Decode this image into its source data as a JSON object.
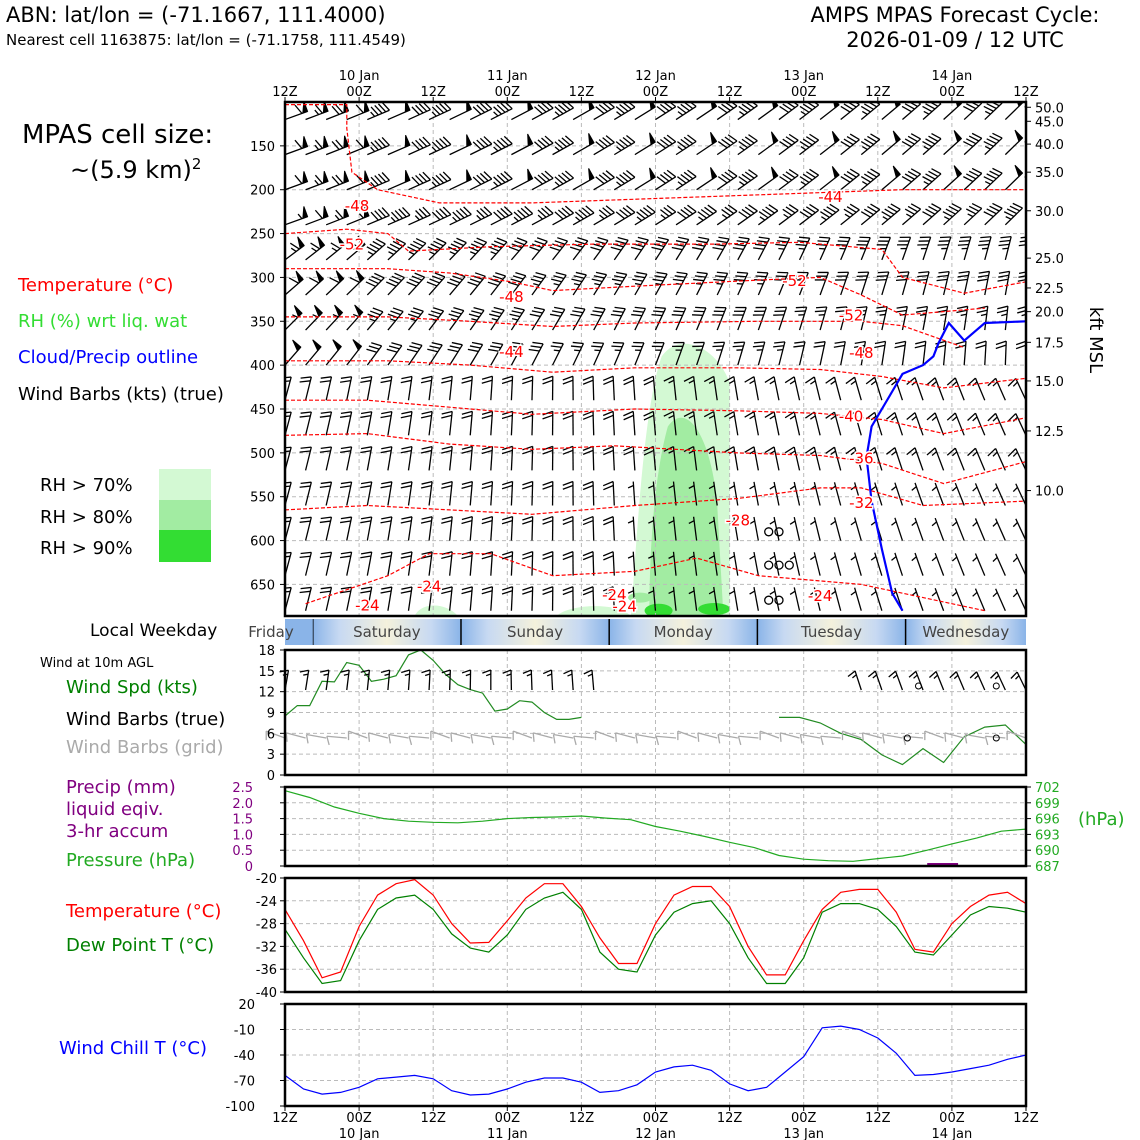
{
  "header": {
    "site_line": "ABN: lat/lon = (-71.1667, 111.4000)",
    "cell_line": "Nearest cell 1163875: lat/lon = (-71.1758, 111.4549)",
    "forecast_title": "AMPS MPAS Forecast Cycle:",
    "forecast_cycle": "2026-01-09 / 12 UTC"
  },
  "cell_size": {
    "label": "MPAS cell size:",
    "value": "~(5.9 km)",
    "exponent": "2"
  },
  "legend": {
    "temperature": "Temperature (°C)",
    "rh": "RH (%) wrt liq. wat",
    "cloud": "Cloud/Precip outline",
    "wind": "Wind Barbs (kts) (true)",
    "rh70": "RH > 70%",
    "rh80": "RH > 80%",
    "rh90": "RH > 90%"
  },
  "colors": {
    "temperature": "#ff0000",
    "rh_legend_text": "#33dd33",
    "cloud": "#0000ff",
    "rh70": "#d3f9d3",
    "rh80": "#a2eca2",
    "rh90": "#33dd33",
    "wind_speed": "#228b22",
    "pressure": "#22aa22",
    "precip": "#800080",
    "dewpoint": "#008000",
    "wind_chill": "#0000ff",
    "grid_barbs": "#aaaaaa"
  },
  "time_axis": {
    "ticks": [
      "12Z",
      "00Z",
      "12Z",
      "00Z",
      "12Z",
      "00Z",
      "12Z",
      "00Z",
      "12Z",
      "00Z",
      "12Z"
    ],
    "dates": [
      "10 Jan",
      "11 Jan",
      "12 Jan",
      "13 Jan",
      "14 Jan"
    ]
  },
  "weekday": {
    "label": "Local Weekday",
    "days": [
      "Friday",
      "Saturday",
      "Sunday",
      "Monday",
      "Tuesday",
      "Wednesday"
    ]
  },
  "panel_labels": {
    "wind10": "Wind at 10m AGL",
    "wind_spd": "Wind Spd (kts)",
    "wind_barbs_true": "Wind Barbs (true)",
    "wind_barbs_grid": "Wind Barbs (grid)",
    "precip1": "Precip (mm)",
    "precip2": "liquid eqiv.",
    "precip3": "3-hr accum",
    "pressure": "Pressure (hPa)",
    "pressure_unit": "(hPa)",
    "temperature": "Temperature (°C)",
    "dewpoint": "Dew Point T (°C)",
    "wind_chill": "Wind Chill T (°C)"
  },
  "chart_data": [
    {
      "type": "heatmap",
      "id": "profile",
      "left_axis_hpa": [
        150,
        200,
        250,
        300,
        350,
        400,
        450,
        500,
        550,
        600,
        650
      ],
      "right_axis_label": "kft MSL",
      "right_axis_kft": [
        "50.0",
        "45.0",
        "40.0",
        "35.0",
        "30.0",
        "25.0",
        "22.5",
        "20.0",
        "17.5",
        "15.0",
        "12.5",
        "10.0"
      ],
      "right_axis_hpa_pos": [
        106,
        122,
        148,
        180,
        224,
        278,
        312,
        339,
        374,
        418,
        475,
        543
      ],
      "temperature_contours": [
        {
          "label": "-48",
          "p": [
            [
              0,
              103
            ],
            [
              6,
              103
            ],
            [
              6,
              130
            ],
            [
              6.5,
              180
            ],
            [
              9,
              200
            ],
            [
              15,
              215
            ],
            [
              24,
              215
            ],
            [
              36,
              210
            ],
            [
              48,
              205
            ],
            [
              60,
              200
            ],
            [
              72,
              200
            ]
          ]
        },
        {
          "label": "-52",
          "p": [
            [
              0,
              250
            ],
            [
              6,
              245
            ],
            [
              10,
              250
            ],
            [
              12,
              270
            ],
            [
              20,
              265
            ],
            [
              30,
              262
            ],
            [
              42,
              262
            ],
            [
              50,
              260
            ],
            [
              58,
              268
            ],
            [
              60,
              300
            ],
            [
              66,
              318
            ],
            [
              72,
              305
            ]
          ]
        },
        {
          "label": "-48",
          "p": [
            [
              0,
              290
            ],
            [
              10,
              290
            ],
            [
              16,
              295
            ],
            [
              22,
              305
            ],
            [
              26,
              315
            ],
            [
              34,
              310
            ],
            [
              46,
              303
            ],
            [
              52,
              300
            ],
            [
              56,
              320
            ],
            [
              60,
              343
            ],
            [
              68,
              335
            ]
          ]
        },
        {
          "label": "-44",
          "p": [
            [
              0,
              345
            ],
            [
              10,
              345
            ],
            [
              18,
              350
            ],
            [
              26,
              356
            ],
            [
              34,
              352
            ],
            [
              46,
              350
            ],
            [
              56,
              350
            ],
            [
              60,
              355
            ],
            [
              66,
              380
            ]
          ]
        },
        {
          "label": "-40",
          "p": [
            [
              0,
              395
            ],
            [
              10,
              395
            ],
            [
              18,
              400
            ],
            [
              26,
              408
            ],
            [
              34,
              403
            ],
            [
              44,
              403
            ],
            [
              52,
              405
            ],
            [
              58,
              413
            ],
            [
              64,
              426
            ],
            [
              72,
              415
            ]
          ]
        },
        {
          "label": "-36",
          "p": [
            [
              0,
              440
            ],
            [
              8,
              440
            ],
            [
              16,
              448
            ],
            [
              24,
              456
            ],
            [
              34,
              450
            ],
            [
              44,
              452
            ],
            [
              52,
              455
            ],
            [
              58,
              462
            ],
            [
              64,
              478
            ],
            [
              72,
              460
            ]
          ]
        },
        {
          "label": "-32",
          "p": [
            [
              0,
              480
            ],
            [
              8,
              478
            ],
            [
              16,
              490
            ],
            [
              24,
              496
            ],
            [
              32,
              492
            ],
            [
              44,
              500
            ],
            [
              52,
              503
            ],
            [
              58,
              512
            ],
            [
              64,
              535
            ],
            [
              72,
              510
            ]
          ]
        },
        {
          "label": "-28",
          "p": [
            [
              0,
              565
            ],
            [
              8,
              560
            ],
            [
              16,
              565
            ],
            [
              24,
              570
            ],
            [
              34,
              560
            ],
            [
              44,
              552
            ],
            [
              52,
              540
            ],
            [
              56,
              540
            ],
            [
              62,
              560
            ],
            [
              72,
              555
            ]
          ]
        },
        {
          "label": "-24",
          "p": [
            [
              2,
              672
            ],
            [
              10,
              640
            ],
            [
              14,
              615
            ],
            [
              20,
              615
            ],
            [
              26,
              640
            ],
            [
              34,
              635
            ],
            [
              40,
              620
            ],
            [
              46,
              640
            ],
            [
              56,
              650
            ],
            [
              60,
              660
            ],
            [
              68,
              680
            ]
          ]
        }
      ],
      "temperature_labels": [
        {
          "text": "-48",
          "t": 7,
          "p": 224
        },
        {
          "text": "-52",
          "t": 6.5,
          "p": 268
        },
        {
          "text": "-48",
          "t": 22,
          "p": 328
        },
        {
          "text": "-44",
          "t": 22,
          "p": 391
        },
        {
          "text": "-52",
          "t": 49.5,
          "p": 310
        },
        {
          "text": "-44",
          "t": 53,
          "p": 214
        },
        {
          "text": "-52",
          "t": 55,
          "p": 349
        },
        {
          "text": "-48",
          "t": 56,
          "p": 392
        },
        {
          "text": "-40",
          "t": 55,
          "p": 464
        },
        {
          "text": "-36",
          "t": 56,
          "p": 512
        },
        {
          "text": "-32",
          "t": 56,
          "p": 563
        },
        {
          "text": "-28",
          "t": 44,
          "p": 583
        },
        {
          "text": "-24",
          "t": 14,
          "p": 658
        },
        {
          "text": "-24",
          "t": 32,
          "p": 668
        },
        {
          "text": "-24",
          "t": 33,
          "p": 681
        },
        {
          "text": "-24",
          "t": 52,
          "p": 669
        },
        {
          "text": "-24",
          "t": 8,
          "p": 680
        }
      ],
      "cloud_outline": [
        [
          60,
          680
        ],
        [
          59,
          660
        ],
        [
          58,
          610
        ],
        [
          57,
          555
        ],
        [
          56.5,
          505
        ],
        [
          57,
          470
        ],
        [
          58,
          450
        ],
        [
          59,
          430
        ],
        [
          60,
          410
        ],
        [
          62,
          400
        ],
        [
          63,
          390
        ],
        [
          63.5,
          375
        ],
        [
          64.5,
          352
        ],
        [
          66,
          372
        ],
        [
          67,
          362
        ],
        [
          68,
          352
        ],
        [
          72,
          350
        ]
      ],
      "calm_markers": [
        [
          47,
          590
        ],
        [
          48,
          590
        ],
        [
          47,
          628
        ],
        [
          48,
          628
        ],
        [
          49,
          628
        ],
        [
          47,
          668
        ],
        [
          48,
          668
        ]
      ]
    },
    {
      "type": "line",
      "id": "wind_speed",
      "ylim": [
        0,
        18
      ],
      "yticks": [
        0,
        3,
        6,
        9,
        12,
        15,
        18
      ],
      "x": [
        0,
        1,
        2,
        3,
        4,
        5,
        6,
        7,
        8,
        9,
        10,
        11,
        12,
        13,
        14,
        15,
        16,
        17,
        18,
        19,
        20,
        21,
        22,
        23,
        24
      ],
      "series": [
        {
          "values": [
            8.5,
            10,
            10,
            13.5,
            13.4,
            16.2,
            15.8,
            13.5,
            13.8,
            14.3,
            17.3,
            18,
            16.5,
            14.5,
            13,
            12.3,
            11.8,
            9.2,
            9.5,
            10.7,
            10.5,
            9,
            8,
            8,
            8.3
          ]
        }
      ],
      "x2": [
        24,
        25,
        26,
        27,
        28,
        29,
        30,
        31,
        32,
        33,
        34,
        35,
        36
      ],
      "series2": [
        {
          "values": [
            8.3,
            8.3,
            7.5,
            6,
            5.1,
            2.9,
            1.5,
            3.8,
            1.8,
            5.5,
            6.9,
            7.2,
            4.4
          ]
        }
      ]
    },
    {
      "type": "line",
      "id": "precip_pressure",
      "left_ylim": [
        0,
        2.5
      ],
      "left_yticks": [
        "0",
        "0.5",
        "1.0",
        "1.5",
        "2.0",
        "2.5"
      ],
      "right_ylim": [
        687,
        702
      ],
      "right_yticks": [
        "687",
        "690",
        "693",
        "696",
        "699",
        "702"
      ],
      "pressure": [
        701.3,
        700,
        698.2,
        697,
        696,
        695.5,
        695.3,
        695.2,
        695.5,
        696,
        696.2,
        696.3,
        696.5,
        696.1,
        695.8,
        694.5,
        693.6,
        692.6,
        691.5,
        690.5,
        689,
        688.3,
        688,
        687.9,
        688.4,
        688.9,
        690,
        691.2,
        692.3,
        693.6,
        694
      ]
    },
    {
      "type": "line",
      "id": "temp_dew",
      "ylim": [
        -40,
        -20
      ],
      "yticks": [
        -40,
        -36,
        -32,
        -28,
        -24,
        -20
      ],
      "temperature": [
        -25.5,
        -31,
        -37.5,
        -36.5,
        -28.5,
        -23,
        -21,
        -20.3,
        -23,
        -28,
        -31.4,
        -31.3,
        -27.5,
        -23.5,
        -21,
        -21,
        -25,
        -30.5,
        -35,
        -35,
        -28,
        -23,
        -21.5,
        -21.5,
        -25,
        -32,
        -37,
        -37,
        -31,
        -25.5,
        -22.5,
        -22,
        -22,
        -26,
        -32.5,
        -33,
        -28,
        -25,
        -23,
        -22.5,
        -24.5
      ],
      "dewpoint": [
        -29,
        -34,
        -38.5,
        -38,
        -31,
        -25.5,
        -23.5,
        -23,
        -25.5,
        -29.8,
        -32.3,
        -33,
        -30,
        -25.5,
        -23.5,
        -22.5,
        -25.5,
        -33,
        -36,
        -36.5,
        -30,
        -26,
        -24.5,
        -24,
        -28,
        -34,
        -38.5,
        -38.5,
        -34,
        -26,
        -24.5,
        -24.5,
        -25.5,
        -28.5,
        -33,
        -33.5,
        -30,
        -26.5,
        -25,
        -25.3,
        -26
      ]
    },
    {
      "type": "line",
      "id": "wind_chill",
      "ylim": [
        -100,
        20
      ],
      "yticks": [
        -100,
        -70,
        -40,
        -10,
        20
      ],
      "values": [
        -64,
        -80,
        -86,
        -84,
        -78,
        -68,
        -66,
        -64,
        -68,
        -82,
        -87,
        -86,
        -80,
        -72,
        -67,
        -67,
        -72,
        -84,
        -82,
        -75,
        -60,
        -54,
        -52,
        -58,
        -74,
        -82,
        -78,
        -60,
        -42,
        -8,
        -6,
        -10,
        -20,
        -38,
        -64,
        -63,
        -60,
        -56,
        -52,
        -45,
        -40
      ]
    }
  ]
}
